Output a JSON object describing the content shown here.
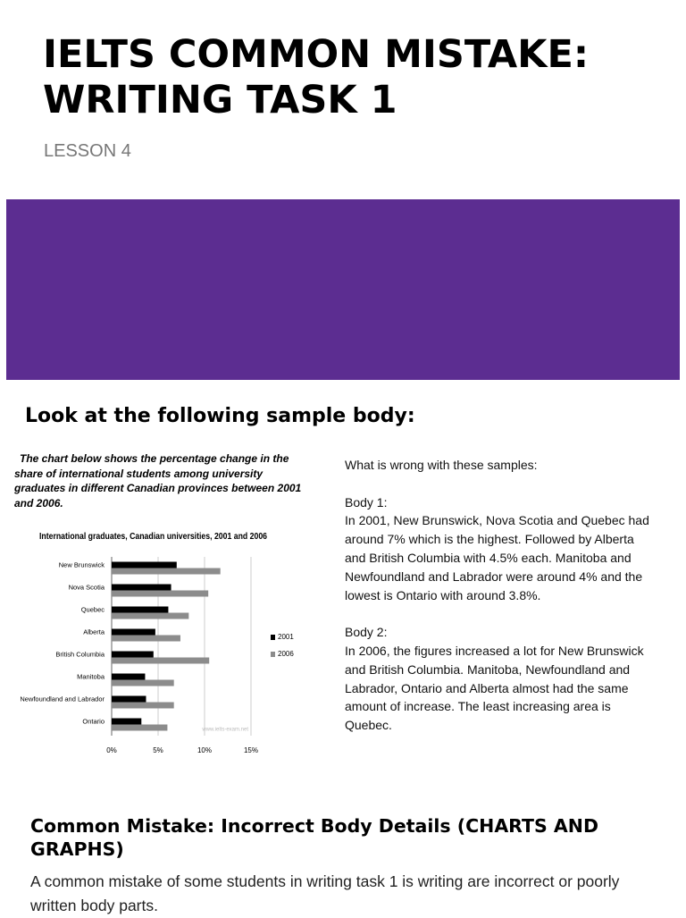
{
  "header": {
    "title_lines": [
      "IELTS COMMON MISTAKE:",
      "WRITING TASK 1"
    ],
    "subtitle": "LESSON 4"
  },
  "section_heading": "Look at the following sample body:",
  "chart_intro_lines": [
    "The chart below shows the percentage change in the",
    "share of international  students among university",
    "graduates in different Canadian provinces between 2001",
    "and 2006."
  ],
  "chart_data": {
    "type": "hbar",
    "title": "International graduates, Canadian universities, 2001 and 2006",
    "categories": [
      "New Brunswick",
      "Nova Scotia",
      "Quebec",
      "Alberta",
      "British Columbia",
      "Manitoba",
      "Newfoundland and Labrador",
      "Ontario"
    ],
    "series": [
      {
        "name": "2001",
        "color": "#000000",
        "values": [
          7.0,
          6.4,
          6.1,
          4.7,
          4.5,
          3.6,
          3.7,
          3.2
        ]
      },
      {
        "name": "2006",
        "color": "#8c8c8c",
        "values": [
          11.7,
          10.4,
          8.3,
          7.4,
          10.5,
          6.7,
          6.7,
          6.0
        ]
      }
    ],
    "xlim": [
      0,
      15
    ],
    "xticks": [
      {
        "value": 0,
        "label": "0%"
      },
      {
        "value": 5,
        "label": "5%"
      },
      {
        "value": 10,
        "label": "10%"
      },
      {
        "value": 15,
        "label": "15%"
      }
    ],
    "grid": true,
    "legend": "right",
    "watermark": "www.ielts-exam.net"
  },
  "question": {
    "prompt": "What is wrong with these samples:",
    "bodies": [
      {
        "label": "Body 1:",
        "lines": [
          "In 2001, New Brunswick, Nova Scotia and Quebec had",
          "around 7% which is the highest. Followed by Alberta",
          "and British Columbia with 4.5% each. Manitoba and",
          "Newfoundland and Labrador were around 4% and the",
          "lowest is Ontario with around 3.8%."
        ]
      },
      {
        "label": "Body 2:",
        "lines": [
          "In 2006, the figures increased a lot for New Brunswick",
          "and British Columbia. Manitoba, Newfoundland and",
          "Labrador, Ontario and Alberta almost had the same",
          "amount of increase. The least increasing area is",
          "Quebec."
        ]
      }
    ]
  },
  "mistake": {
    "heading": "Common Mistake: Incorrect Body Details (CHARTS AND GRAPHS)",
    "text": "A common mistake of some students in writing task 1 is writing are incorrect or poorly written body parts."
  }
}
